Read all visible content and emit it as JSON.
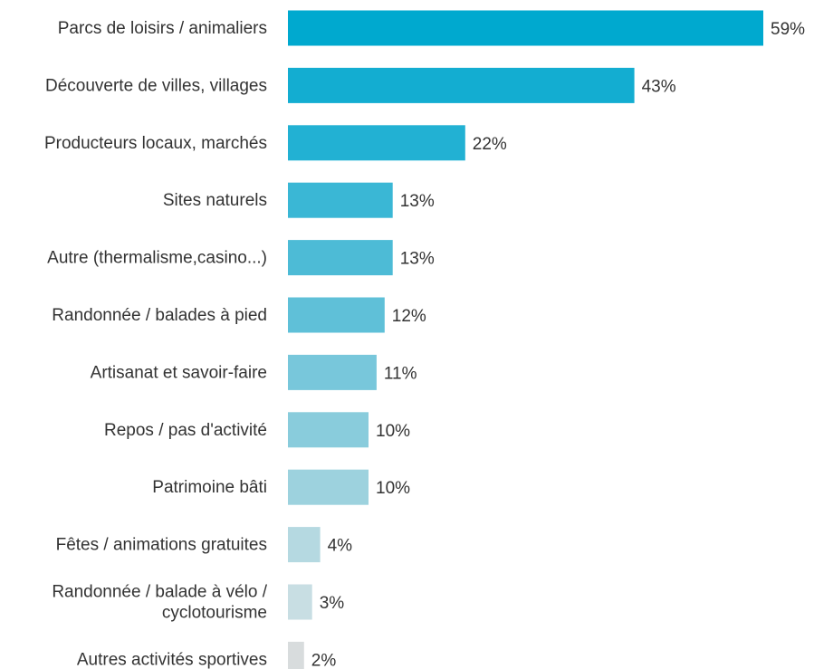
{
  "chart_data": {
    "type": "bar",
    "orientation": "horizontal",
    "categories": [
      "Parcs de loisirs / animaliers",
      "Découverte de villes, villages",
      "Producteurs locaux, marchés",
      "Sites naturels",
      "Autre (thermalisme,casino...)",
      "Randonnée / balades à pied",
      "Artisanat et savoir-faire",
      "Repos / pas d'activité",
      "Patrimoine bâti",
      "Fêtes / animations gratuites",
      "Randonnée / balade à vélo / cyclotourisme",
      "Autres activités sportives"
    ],
    "values": [
      59,
      43,
      22,
      13,
      13,
      12,
      11,
      10,
      10,
      4,
      3,
      2
    ],
    "value_labels": [
      "59%",
      "43%",
      "22%",
      "13%",
      "13%",
      "12%",
      "11%",
      "10%",
      "10%",
      "4%",
      "3%",
      "2%"
    ],
    "unit": "%",
    "xlim": [
      0,
      59
    ],
    "grid": false,
    "legend": "none",
    "colors": [
      "#00a9cf",
      "#13add1",
      "#22b1d3",
      "#3ab7d5",
      "#4dbbd6",
      "#5fc0d8",
      "#78c7db",
      "#89ccdc",
      "#9dd2de",
      "#b5d9e1",
      "#c8dee3",
      "#d8dcdd"
    ]
  }
}
